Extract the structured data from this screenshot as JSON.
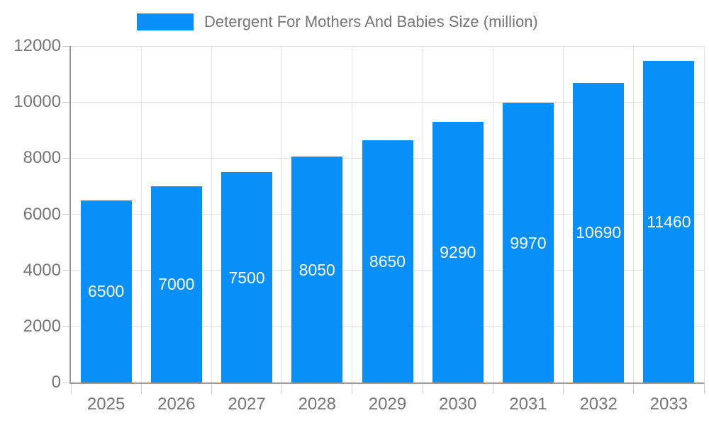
{
  "legend": {
    "label": "Detergent For Mothers And Babies Size (million)"
  },
  "chart_data": {
    "type": "bar",
    "title": "Detergent For Mothers And Babies Size (million)",
    "series_name": "Detergent For Mothers And Babies Size (million)",
    "categories": [
      "2025",
      "2026",
      "2027",
      "2028",
      "2029",
      "2030",
      "2031",
      "2032",
      "2033"
    ],
    "values": [
      6500,
      7000,
      7500,
      8050,
      8650,
      9290,
      9970,
      10690,
      11460
    ],
    "xlabel": "",
    "ylabel": "",
    "ylim": [
      0,
      12000
    ],
    "y_tick_step": 2000,
    "y_tick_labels": [
      "0",
      "2000",
      "4000",
      "6000",
      "8000",
      "10000",
      "12000"
    ],
    "grid": true,
    "legend_position": "top-center",
    "bar_labels_inside": true,
    "colors": {
      "bar": "#0990f8",
      "bar_label": "#ffffff",
      "axis": "#999999",
      "grid": "#e3e3e3",
      "tick": "#cccccc",
      "tick_label": "#757575",
      "legend_text": "#757575"
    }
  }
}
